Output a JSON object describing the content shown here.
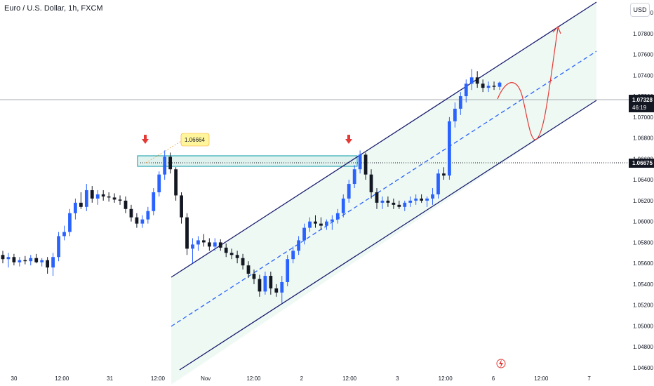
{
  "header": {
    "symbol_title": "Euro / U.S. Dollar, 1h, FXCM",
    "currency_button": "USD"
  },
  "price_axis": {
    "ticks": [
      "1.08000",
      "1.07800",
      "1.07600",
      "1.07400",
      "1.07200",
      "1.07000",
      "1.06800",
      "1.06600",
      "1.06400",
      "1.06200",
      "1.06000",
      "1.05800",
      "1.05600",
      "1.05400",
      "1.05200",
      "1.05000",
      "1.04800",
      "1.04600"
    ],
    "current_price_label": "1.07328",
    "countdown_label": "46:19",
    "marked_level_label": "1.06675"
  },
  "time_axis": {
    "ticks": [
      "30",
      "12:00",
      "31",
      "12:00",
      "Nov",
      "12:00",
      "2",
      "12:00",
      "3",
      "12:00",
      "6",
      "12:00",
      "7"
    ]
  },
  "annotations": {
    "price_callout": "1.06664"
  },
  "colors": {
    "bull_candle": "#2962ff",
    "bear_candle": "#131722",
    "channel_line": "#1a1f6e",
    "channel_mid": "#2962ff",
    "channel_fill": "#e8f7ef",
    "resistance_box": "#e0f2ee",
    "resistance_box_border": "#0097a7",
    "arrow_marker": "#e53935",
    "projection_path": "#e53935",
    "callout_bg": "#fff59d"
  },
  "chart_data": {
    "type": "candlestick",
    "title": "Euro / U.S. Dollar, 1h, FXCM",
    "ylim": [
      1.046,
      1.082
    ],
    "y_log": false,
    "grid": false,
    "current_price": 1.07328,
    "marked_level": 1.06675,
    "resistance_zone": [
      1.0666,
      1.0676
    ],
    "channel_pattern": "ascending",
    "ohlc": [
      [
        1.0568,
        1.0572,
        1.056,
        1.0564
      ],
      [
        1.0564,
        1.057,
        1.0556,
        1.0566
      ],
      [
        1.0566,
        1.0569,
        1.0558,
        1.0561
      ],
      [
        1.0561,
        1.0566,
        1.0557,
        1.0563
      ],
      [
        1.0563,
        1.0567,
        1.0559,
        1.0562
      ],
      [
        1.0562,
        1.0568,
        1.0558,
        1.0565
      ],
      [
        1.0565,
        1.0569,
        1.056,
        1.0561
      ],
      [
        1.0561,
        1.0565,
        1.0557,
        1.0563
      ],
      [
        1.0563,
        1.0566,
        1.055,
        1.0556
      ],
      [
        1.0556,
        1.057,
        1.0548,
        1.0566
      ],
      [
        1.0566,
        1.059,
        1.0562,
        1.0586
      ],
      [
        1.0586,
        1.0596,
        1.0582,
        1.059
      ],
      [
        1.059,
        1.0612,
        1.0586,
        1.0608
      ],
      [
        1.0608,
        1.0622,
        1.0602,
        1.0618
      ],
      [
        1.0618,
        1.0628,
        1.0612,
        1.0614
      ],
      [
        1.0614,
        1.0636,
        1.061,
        1.063
      ],
      [
        1.063,
        1.0634,
        1.0618,
        1.0622
      ],
      [
        1.0622,
        1.063,
        1.0616,
        1.0626
      ],
      [
        1.0626,
        1.063,
        1.062,
        1.0624
      ],
      [
        1.0624,
        1.0628,
        1.0619,
        1.0623
      ],
      [
        1.0623,
        1.0627,
        1.0618,
        1.0621
      ],
      [
        1.0621,
        1.0625,
        1.0616,
        1.062
      ],
      [
        1.062,
        1.0624,
        1.0608,
        1.0612
      ],
      [
        1.0612,
        1.0616,
        1.06,
        1.0604
      ],
      [
        1.0604,
        1.0608,
        1.0594,
        1.0598
      ],
      [
        1.0598,
        1.0606,
        1.0594,
        1.0602
      ],
      [
        1.0602,
        1.0614,
        1.0598,
        1.061
      ],
      [
        1.061,
        1.0632,
        1.0606,
        1.0628
      ],
      [
        1.0628,
        1.0648,
        1.0624,
        1.0645
      ],
      [
        1.0645,
        1.0668,
        1.064,
        1.0662
      ],
      [
        1.0662,
        1.0666,
        1.0646,
        1.065
      ],
      [
        1.065,
        1.0652,
        1.062,
        1.0625
      ],
      [
        1.0625,
        1.0628,
        1.0598,
        1.0604
      ],
      [
        1.0604,
        1.0608,
        1.0568,
        1.0574
      ],
      [
        1.0574,
        1.0584,
        1.056,
        1.0578
      ],
      [
        1.0578,
        1.0586,
        1.0572,
        1.0582
      ],
      [
        1.0582,
        1.0588,
        1.0576,
        1.058
      ],
      [
        1.058,
        1.0584,
        1.0572,
        1.0576
      ],
      [
        1.0576,
        1.0584,
        1.0572,
        1.058
      ],
      [
        1.058,
        1.0583,
        1.0572,
        1.0575
      ],
      [
        1.0575,
        1.0579,
        1.0566,
        1.057
      ],
      [
        1.057,
        1.0574,
        1.0564,
        1.0568
      ],
      [
        1.0568,
        1.0572,
        1.056,
        1.0565
      ],
      [
        1.0565,
        1.0569,
        1.0554,
        1.0558
      ],
      [
        1.0558,
        1.0562,
        1.0546,
        1.055
      ],
      [
        1.055,
        1.0554,
        1.054,
        1.0545
      ],
      [
        1.0545,
        1.0549,
        1.0528,
        1.0533
      ],
      [
        1.0533,
        1.0552,
        1.053,
        1.0548
      ],
      [
        1.0548,
        1.0552,
        1.053,
        1.0536
      ],
      [
        1.0536,
        1.054,
        1.0528,
        1.0532
      ],
      [
        1.0532,
        1.0548,
        1.0522,
        1.0542
      ],
      [
        1.0542,
        1.0568,
        1.0538,
        1.0564
      ],
      [
        1.0564,
        1.0576,
        1.056,
        1.0572
      ],
      [
        1.0572,
        1.0586,
        1.0568,
        1.0582
      ],
      [
        1.0582,
        1.0598,
        1.0578,
        1.0594
      ],
      [
        1.0594,
        1.0604,
        1.059,
        1.06
      ],
      [
        1.06,
        1.0606,
        1.0594,
        1.0598
      ],
      [
        1.0598,
        1.0604,
        1.0592,
        1.0596
      ],
      [
        1.0596,
        1.0602,
        1.0592,
        1.06
      ],
      [
        1.06,
        1.0606,
        1.0592,
        1.0602
      ],
      [
        1.0602,
        1.0612,
        1.0598,
        1.0608
      ],
      [
        1.0608,
        1.0626,
        1.0604,
        1.0622
      ],
      [
        1.0622,
        1.064,
        1.0618,
        1.0636
      ],
      [
        1.0636,
        1.0654,
        1.0632,
        1.065
      ],
      [
        1.065,
        1.0668,
        1.0646,
        1.0664
      ],
      [
        1.0664,
        1.0666,
        1.064,
        1.0645
      ],
      [
        1.0645,
        1.065,
        1.0622,
        1.0628
      ],
      [
        1.0628,
        1.0632,
        1.0612,
        1.0618
      ],
      [
        1.0618,
        1.0624,
        1.0612,
        1.062
      ],
      [
        1.062,
        1.0624,
        1.0614,
        1.0618
      ],
      [
        1.0618,
        1.0622,
        1.0612,
        1.0616
      ],
      [
        1.0616,
        1.062,
        1.0612,
        1.0614
      ],
      [
        1.0614,
        1.062,
        1.061,
        1.0618
      ],
      [
        1.0618,
        1.0624,
        1.0614,
        1.062
      ],
      [
        1.062,
        1.0626,
        1.0616,
        1.0622
      ],
      [
        1.0622,
        1.0626,
        1.0618,
        1.062
      ],
      [
        1.062,
        1.0624,
        1.0614,
        1.0622
      ],
      [
        1.0622,
        1.0632,
        1.0616,
        1.0626
      ],
      [
        1.0626,
        1.065,
        1.0622,
        1.0646
      ],
      [
        1.0646,
        1.0652,
        1.064,
        1.0644
      ],
      [
        1.0644,
        1.07,
        1.064,
        1.0696
      ],
      [
        1.0696,
        1.0714,
        1.069,
        1.0708
      ],
      [
        1.0708,
        1.0724,
        1.0702,
        1.072
      ],
      [
        1.072,
        1.0736,
        1.0714,
        1.0732
      ],
      [
        1.0732,
        1.0746,
        1.0726,
        1.0738
      ],
      [
        1.0738,
        1.0744,
        1.0728,
        1.0732
      ],
      [
        1.0732,
        1.0736,
        1.0724,
        1.0728
      ],
      [
        1.0728,
        1.0734,
        1.0724,
        1.073
      ],
      [
        1.073,
        1.0734,
        1.0726,
        1.0729
      ],
      [
        1.0729,
        1.0734,
        1.0726,
        1.0733
      ]
    ]
  }
}
